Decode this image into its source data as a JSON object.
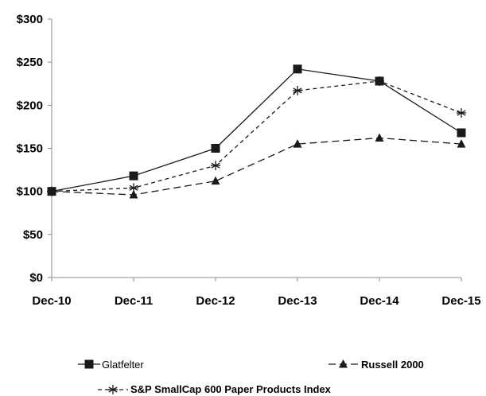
{
  "chart_data": {
    "type": "line",
    "categories": [
      "Dec-10",
      "Dec-11",
      "Dec-12",
      "Dec-13",
      "Dec-14",
      "Dec-15"
    ],
    "y_ticks": [
      "$0",
      "$50",
      "$100",
      "$150",
      "$200",
      "$250",
      "$300"
    ],
    "ylim": [
      0,
      300
    ],
    "grid": false,
    "legend_position": "bottom",
    "series": [
      {
        "name": "Glatfelter",
        "values": [
          100,
          118,
          150,
          242,
          228,
          168
        ],
        "line_style": "solid",
        "marker": "square"
      },
      {
        "name": "Russell 2000",
        "values": [
          100,
          96,
          112,
          155,
          162,
          155
        ],
        "line_style": "long-dash",
        "marker": "triangle"
      },
      {
        "name": "S&P SmallCap 600 Paper Products Index",
        "values": [
          100,
          104,
          130,
          217,
          228,
          191
        ],
        "line_style": "short-dash",
        "marker": "asterisk"
      }
    ],
    "colors": {
      "line": "#1a1a1a",
      "axis": "#888888"
    }
  }
}
